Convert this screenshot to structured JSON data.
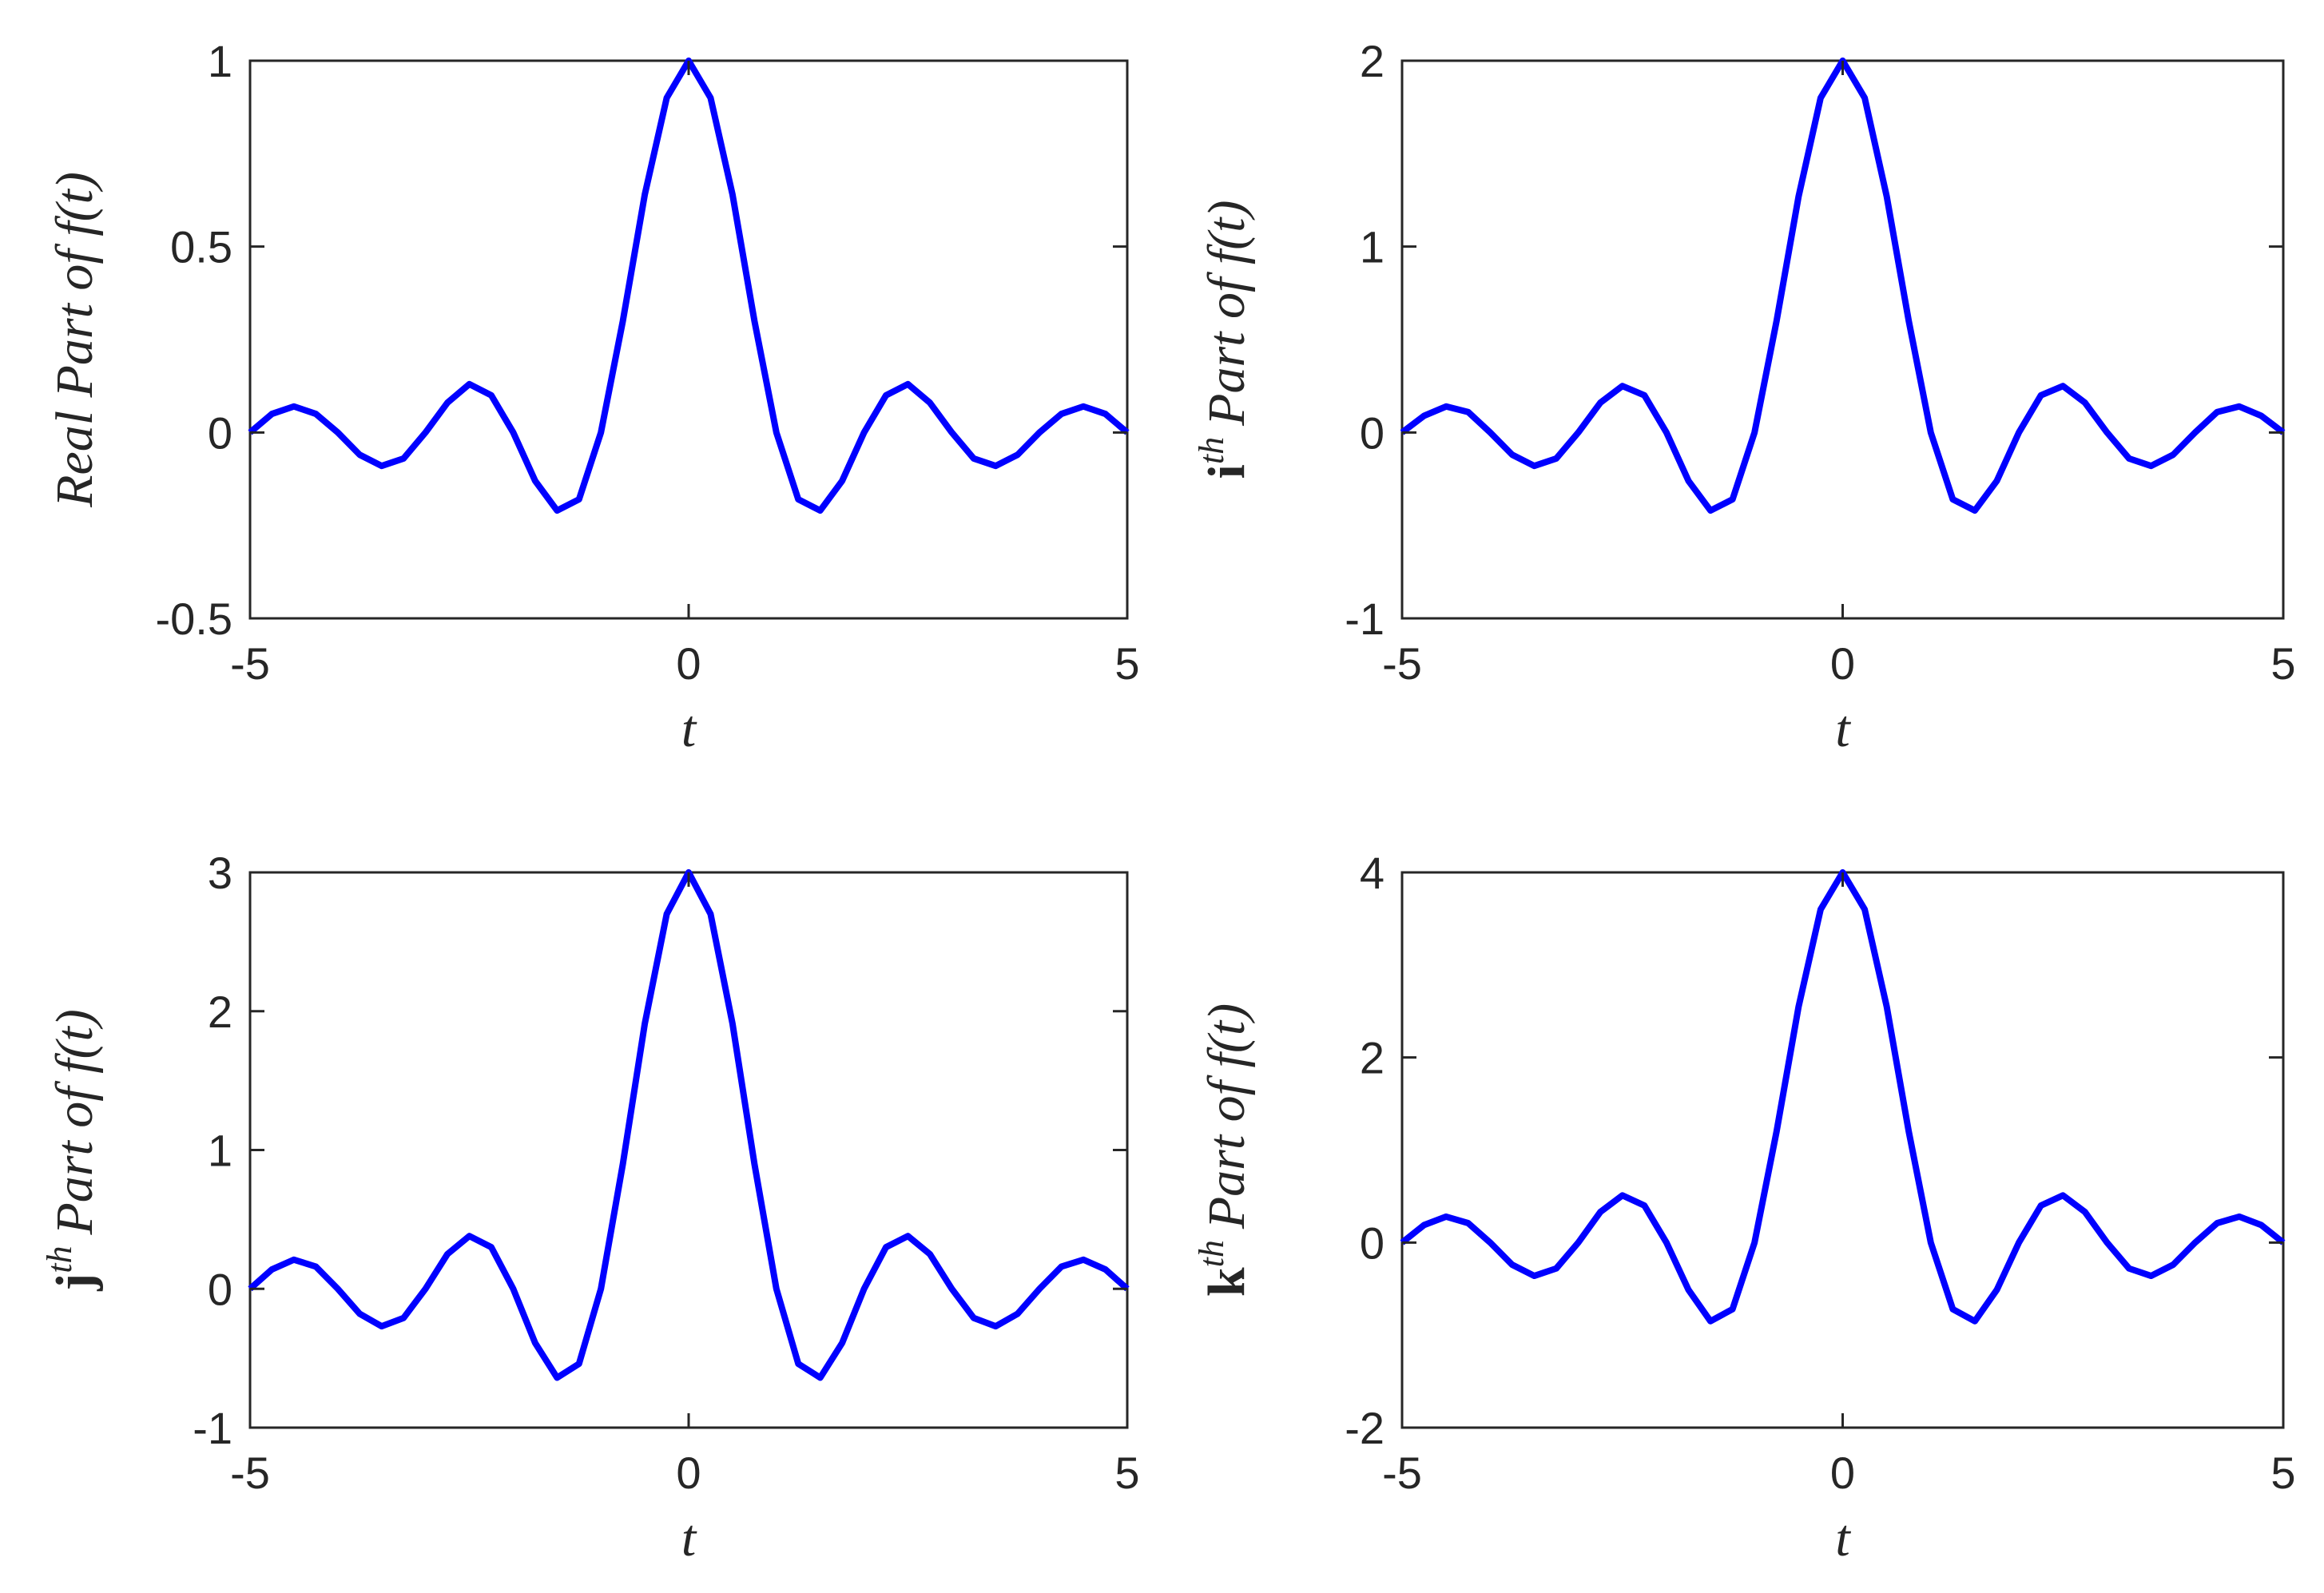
{
  "chart_data": [
    {
      "type": "line",
      "ylabel": "Real Part of f(t)",
      "xlabel": "t",
      "color": "#0000ff",
      "x": [
        -5,
        -4.75,
        -4.5,
        -4.25,
        -4,
        -3.75,
        -3.5,
        -3.25,
        -3,
        -2.75,
        -2.5,
        -2.25,
        -2,
        -1.75,
        -1.5,
        -1.25,
        -1,
        -0.75,
        -0.5,
        -0.25,
        0,
        0.25,
        0.5,
        0.75,
        1,
        1.25,
        1.5,
        1.75,
        2,
        2.25,
        2.5,
        2.75,
        3,
        3.25,
        3.5,
        3.75,
        4,
        4.25,
        4.5,
        4.75,
        5
      ],
      "values": [
        0,
        0.05,
        0.07,
        0.05,
        0,
        -0.06,
        -0.09,
        -0.07,
        0,
        0.08,
        0.13,
        0.1,
        0,
        -0.13,
        -0.21,
        -0.18,
        0,
        0.3,
        0.64,
        0.9,
        1,
        0.9,
        0.64,
        0.3,
        0,
        -0.18,
        -0.21,
        -0.13,
        0,
        0.1,
        0.13,
        0.08,
        0,
        -0.07,
        -0.09,
        -0.06,
        0,
        0.05,
        0.07,
        0.05,
        0
      ],
      "xlim": [
        -5,
        5
      ],
      "xticks": [
        -5,
        0,
        5
      ],
      "ylim": [
        -0.5,
        1
      ],
      "yticks": [
        -0.5,
        0,
        0.5,
        1
      ]
    },
    {
      "type": "line",
      "ylabel_prefix": "i",
      "ylabel_sup": "th",
      "ylabel": "Part of f(t)",
      "xlabel": "t",
      "color": "#0000ff",
      "x": [
        -5,
        -4.75,
        -4.5,
        -4.25,
        -4,
        -3.75,
        -3.5,
        -3.25,
        -3,
        -2.75,
        -2.5,
        -2.25,
        -2,
        -1.75,
        -1.5,
        -1.25,
        -1,
        -0.75,
        -0.5,
        -0.25,
        0,
        0.25,
        0.5,
        0.75,
        1,
        1.25,
        1.5,
        1.75,
        2,
        2.25,
        2.5,
        2.75,
        3,
        3.25,
        3.5,
        3.75,
        4,
        4.25,
        4.5,
        4.75,
        5
      ],
      "values": [
        0,
        0.09,
        0.14,
        0.11,
        0,
        -0.12,
        -0.18,
        -0.14,
        0,
        0.16,
        0.25,
        0.2,
        0,
        -0.26,
        -0.42,
        -0.36,
        0,
        0.6,
        1.27,
        1.8,
        2,
        1.8,
        1.27,
        0.6,
        0,
        -0.36,
        -0.42,
        -0.26,
        0,
        0.2,
        0.25,
        0.16,
        0,
        -0.14,
        -0.18,
        -0.12,
        0,
        0.11,
        0.14,
        0.09,
        0
      ],
      "xlim": [
        -5,
        5
      ],
      "xticks": [
        -5,
        0,
        5
      ],
      "ylim": [
        -1,
        2
      ],
      "yticks": [
        -1,
        0,
        1,
        2
      ]
    },
    {
      "type": "line",
      "ylabel_prefix": "j",
      "ylabel_sup": "th",
      "ylabel": "Part of f(t)",
      "xlabel": "t",
      "color": "#0000ff",
      "x": [
        -5,
        -4.75,
        -4.5,
        -4.25,
        -4,
        -3.75,
        -3.5,
        -3.25,
        -3,
        -2.75,
        -2.5,
        -2.25,
        -2,
        -1.75,
        -1.5,
        -1.25,
        -1,
        -0.75,
        -0.5,
        -0.25,
        0,
        0.25,
        0.5,
        0.75,
        1,
        1.25,
        1.5,
        1.75,
        2,
        2.25,
        2.5,
        2.75,
        3,
        3.25,
        3.5,
        3.75,
        4,
        4.25,
        4.5,
        4.75,
        5
      ],
      "values": [
        0,
        0.14,
        0.21,
        0.16,
        0,
        -0.18,
        -0.27,
        -0.21,
        0,
        0.25,
        0.38,
        0.3,
        0,
        -0.39,
        -0.64,
        -0.54,
        0,
        0.9,
        1.91,
        2.7,
        3,
        2.7,
        1.91,
        0.9,
        0,
        -0.54,
        -0.64,
        -0.39,
        0,
        0.3,
        0.38,
        0.25,
        0,
        -0.21,
        -0.27,
        -0.18,
        0,
        0.16,
        0.21,
        0.14,
        0
      ],
      "xlim": [
        -5,
        5
      ],
      "xticks": [
        -5,
        0,
        5
      ],
      "ylim": [
        -1,
        3
      ],
      "yticks": [
        -1,
        0,
        1,
        2,
        3
      ]
    },
    {
      "type": "line",
      "ylabel_prefix": "k",
      "ylabel_sup": "th",
      "ylabel": "Part of f(t)",
      "xlabel": "t",
      "color": "#0000ff",
      "x": [
        -5,
        -4.75,
        -4.5,
        -4.25,
        -4,
        -3.75,
        -3.5,
        -3.25,
        -3,
        -2.75,
        -2.5,
        -2.25,
        -2,
        -1.75,
        -1.5,
        -1.25,
        -1,
        -0.75,
        -0.5,
        -0.25,
        0,
        0.25,
        0.5,
        0.75,
        1,
        1.25,
        1.5,
        1.75,
        2,
        2.25,
        2.5,
        2.75,
        3,
        3.25,
        3.5,
        3.75,
        4,
        4.25,
        4.5,
        4.75,
        5
      ],
      "values": [
        0,
        0.19,
        0.28,
        0.21,
        0,
        -0.24,
        -0.36,
        -0.28,
        0,
        0.33,
        0.51,
        0.4,
        0,
        -0.51,
        -0.85,
        -0.72,
        0,
        1.2,
        2.55,
        3.6,
        4,
        3.6,
        2.55,
        1.2,
        0,
        -0.72,
        -0.85,
        -0.51,
        0,
        0.4,
        0.51,
        0.33,
        0,
        -0.28,
        -0.36,
        -0.24,
        0,
        0.21,
        0.28,
        0.19,
        0
      ],
      "xlim": [
        -5,
        5
      ],
      "xticks": [
        -5,
        0,
        5
      ],
      "ylim": [
        -2,
        4
      ],
      "yticks": [
        -2,
        0,
        2,
        4
      ]
    }
  ]
}
